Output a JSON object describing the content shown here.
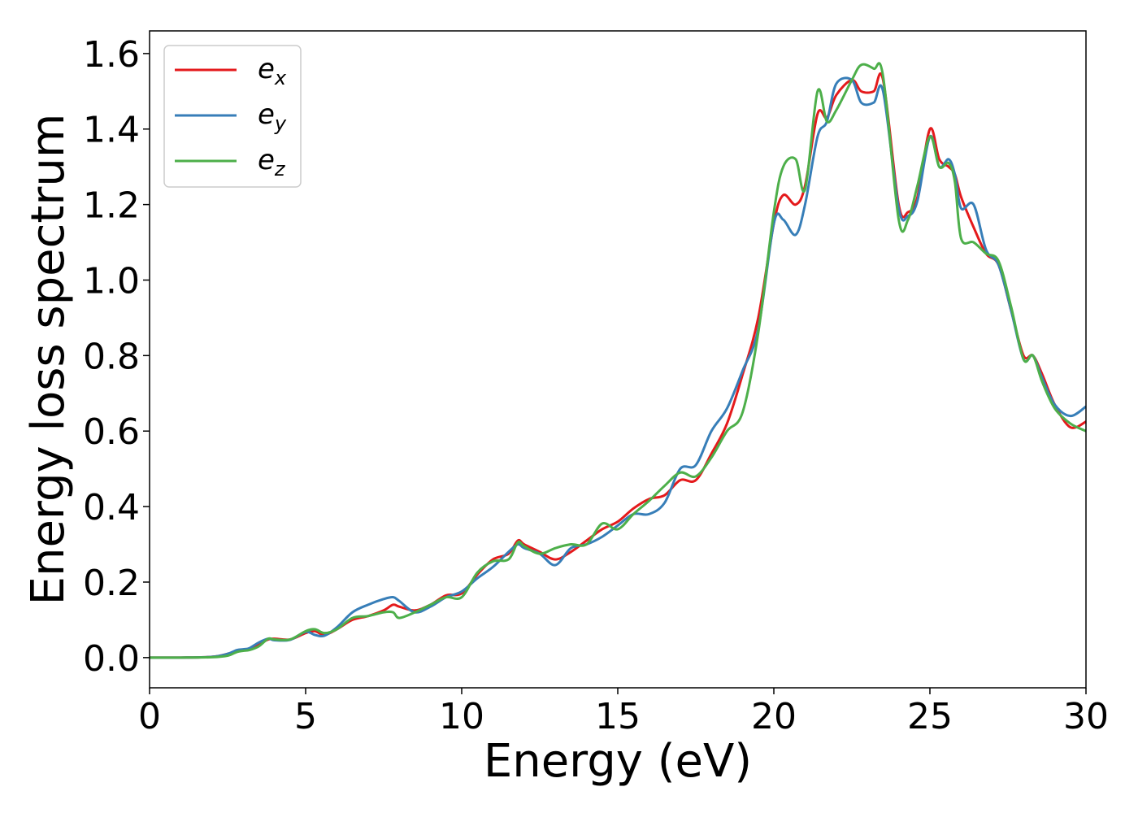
{
  "chart_data": {
    "type": "line",
    "xlabel": "Energy (eV)",
    "ylabel": "Energy loss spectrum",
    "xlim": [
      0,
      30
    ],
    "ylim": [
      -0.08,
      1.66
    ],
    "x_ticks": [
      0,
      5,
      10,
      15,
      20,
      25,
      30
    ],
    "y_ticks": [
      "0.0",
      "0.2",
      "0.4",
      "0.6",
      "0.8",
      "1.0",
      "1.2",
      "1.4",
      "1.6"
    ],
    "y_tick_values": [
      0.0,
      0.2,
      0.4,
      0.6,
      0.8,
      1.0,
      1.2,
      1.4,
      1.6
    ],
    "grid": false,
    "legend_position": "top-left",
    "series": [
      {
        "name": "e_x",
        "label_base": "e",
        "label_sub": "x",
        "color": "#e41a1c",
        "x": [
          0,
          1,
          2,
          2.5,
          2.8,
          3,
          3.2,
          3.5,
          3.8,
          4,
          4.5,
          5,
          5.3,
          5.6,
          6,
          6.5,
          7,
          7.5,
          7.8,
          8,
          8.5,
          9,
          9.5,
          10,
          10.5,
          11,
          11.5,
          11.8,
          12,
          12.5,
          13,
          13.5,
          14,
          14.5,
          15,
          15.5,
          16,
          16.5,
          17,
          17.5,
          18,
          18.5,
          19,
          19.5,
          20,
          20.3,
          20.7,
          21,
          21.4,
          21.7,
          22,
          22.5,
          22.8,
          23.2,
          23.5,
          24,
          24.3,
          24.6,
          25,
          25.3,
          25.6,
          25.8,
          26,
          26.4,
          26.8,
          27.2,
          27.6,
          28,
          28.3,
          28.6,
          29,
          29.5,
          30
        ],
        "values": [
          0,
          0,
          0.002,
          0.01,
          0.018,
          0.02,
          0.022,
          0.035,
          0.048,
          0.05,
          0.048,
          0.065,
          0.07,
          0.06,
          0.075,
          0.1,
          0.11,
          0.125,
          0.14,
          0.135,
          0.125,
          0.14,
          0.165,
          0.17,
          0.22,
          0.26,
          0.275,
          0.31,
          0.3,
          0.28,
          0.26,
          0.28,
          0.31,
          0.34,
          0.36,
          0.395,
          0.42,
          0.43,
          0.47,
          0.47,
          0.54,
          0.62,
          0.75,
          0.9,
          1.15,
          1.225,
          1.2,
          1.25,
          1.44,
          1.43,
          1.49,
          1.53,
          1.5,
          1.5,
          1.53,
          1.2,
          1.18,
          1.22,
          1.4,
          1.32,
          1.3,
          1.28,
          1.22,
          1.14,
          1.07,
          1.04,
          0.92,
          0.8,
          0.8,
          0.75,
          0.67,
          0.61,
          0.625
        ]
      },
      {
        "name": "e_y",
        "label_base": "e",
        "label_sub": "y",
        "color": "#377eb8",
        "x": [
          0,
          1,
          2,
          2.5,
          2.8,
          3,
          3.2,
          3.5,
          3.8,
          4,
          4.5,
          5,
          5.3,
          5.6,
          6,
          6.5,
          7,
          7.5,
          7.8,
          8,
          8.5,
          9,
          9.5,
          10,
          10.5,
          11,
          11.5,
          11.8,
          12,
          12.5,
          13,
          13.5,
          14,
          14.5,
          15,
          15.5,
          16,
          16.5,
          17,
          17.5,
          18,
          18.5,
          19,
          19.5,
          20,
          20.3,
          20.7,
          21,
          21.4,
          21.7,
          22,
          22.5,
          22.8,
          23.2,
          23.5,
          24,
          24.3,
          24.6,
          25,
          25.3,
          25.6,
          25.8,
          26,
          26.4,
          26.8,
          27.2,
          27.6,
          28,
          28.3,
          28.6,
          29,
          29.5,
          30
        ],
        "values": [
          0,
          0,
          0.002,
          0.01,
          0.02,
          0.022,
          0.025,
          0.04,
          0.05,
          0.046,
          0.047,
          0.068,
          0.06,
          0.058,
          0.08,
          0.12,
          0.14,
          0.155,
          0.16,
          0.15,
          0.12,
          0.135,
          0.16,
          0.175,
          0.21,
          0.24,
          0.28,
          0.3,
          0.29,
          0.275,
          0.245,
          0.29,
          0.3,
          0.32,
          0.35,
          0.38,
          0.38,
          0.41,
          0.5,
          0.51,
          0.6,
          0.66,
          0.76,
          0.87,
          1.15,
          1.16,
          1.12,
          1.2,
          1.38,
          1.42,
          1.52,
          1.53,
          1.47,
          1.47,
          1.5,
          1.19,
          1.17,
          1.21,
          1.38,
          1.3,
          1.32,
          1.28,
          1.19,
          1.2,
          1.08,
          1.04,
          0.92,
          0.79,
          0.8,
          0.74,
          0.67,
          0.64,
          0.665
        ]
      },
      {
        "name": "e_z",
        "label_base": "e",
        "label_sub": "z",
        "color": "#4daf4a",
        "x": [
          0,
          1,
          2,
          2.5,
          2.8,
          3,
          3.2,
          3.5,
          3.8,
          4,
          4.5,
          5,
          5.3,
          5.6,
          6,
          6.5,
          7,
          7.5,
          7.8,
          8,
          8.5,
          9,
          9.5,
          10,
          10.5,
          11,
          11.5,
          11.8,
          12,
          12.5,
          13,
          13.5,
          14,
          14.5,
          15,
          15.5,
          16,
          16.5,
          17,
          17.5,
          18,
          18.5,
          19,
          19.5,
          20,
          20.3,
          20.7,
          21,
          21.4,
          21.7,
          22,
          22.5,
          22.8,
          23.2,
          23.5,
          24,
          24.3,
          24.6,
          25,
          25.3,
          25.6,
          25.8,
          26,
          26.4,
          26.8,
          27.2,
          27.6,
          28,
          28.3,
          28.6,
          29,
          29.5,
          30
        ],
        "values": [
          0,
          0,
          0.001,
          0.005,
          0.015,
          0.018,
          0.02,
          0.03,
          0.05,
          0.048,
          0.048,
          0.07,
          0.075,
          0.065,
          0.075,
          0.105,
          0.11,
          0.12,
          0.12,
          0.105,
          0.12,
          0.14,
          0.16,
          0.16,
          0.225,
          0.255,
          0.26,
          0.305,
          0.295,
          0.275,
          0.29,
          0.3,
          0.3,
          0.355,
          0.34,
          0.38,
          0.415,
          0.455,
          0.49,
          0.48,
          0.53,
          0.6,
          0.65,
          0.86,
          1.18,
          1.3,
          1.32,
          1.24,
          1.5,
          1.42,
          1.45,
          1.53,
          1.57,
          1.56,
          1.54,
          1.16,
          1.16,
          1.25,
          1.38,
          1.3,
          1.31,
          1.26,
          1.11,
          1.1,
          1.07,
          1.05,
          0.93,
          0.79,
          0.8,
          0.73,
          0.66,
          0.62,
          0.6
        ]
      }
    ]
  }
}
